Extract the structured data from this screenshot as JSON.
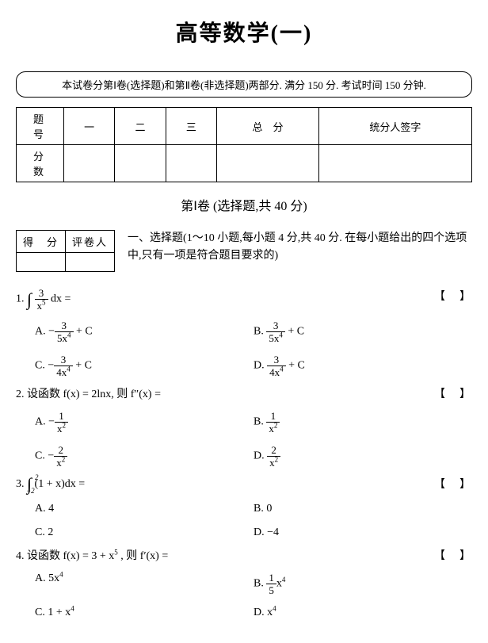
{
  "title": "高等数学(一)",
  "instruction": "本试卷分第Ⅰ卷(选择题)和第Ⅱ卷(非选择题)两部分. 满分 150 分. 考试时间 150 分钟.",
  "scoreTable": {
    "rowLabels": [
      "题　号",
      "分　数"
    ],
    "cols": [
      "一",
      "二",
      "三",
      "总　分",
      "统分人签字"
    ]
  },
  "part1Header": "第Ⅰ卷 (选择题,共 40 分)",
  "miniTable": {
    "h1": "得　分",
    "h2": "评卷人"
  },
  "sectionI": {
    "heading": "一、选择题(1～10 小题,每小题 4 分,共 40 分. 在每小题给出的四个选项",
    "heading2": "中,只有一项是符合题目要求的)"
  },
  "bracket": "【　】",
  "q1": {
    "num": "1.",
    "int": "∫",
    "frac_num": "3",
    "frac_den": "x",
    "exp": "5",
    "tail": "dx =",
    "A": {
      "label": "A. −",
      "num": "3",
      "den1": "5x",
      "exp": "4",
      "tail": " + C"
    },
    "B": {
      "label": "B. ",
      "num": "3",
      "den1": "5x",
      "exp": "4",
      "tail": " + C"
    },
    "C": {
      "label": "C. −",
      "num": "3",
      "den1": "4x",
      "exp": "4",
      "tail": " + C"
    },
    "D": {
      "label": "D. ",
      "num": "3",
      "den1": "4x",
      "exp": "4",
      "tail": " + C"
    }
  },
  "q2": {
    "stem": "2. 设函数 f(x) = 2lnx, 则 f″(x) =",
    "A": {
      "label": "A. −",
      "num": "1",
      "den": "x",
      "exp": "2"
    },
    "B": {
      "label": "B. ",
      "num": "1",
      "den": "x",
      "exp": "2"
    },
    "C": {
      "label": "C. −",
      "num": "2",
      "den": "x",
      "exp": "2"
    },
    "D": {
      "label": "D. ",
      "num": "2",
      "den": "x",
      "exp": "2"
    }
  },
  "q3": {
    "num": "3.",
    "int": "∫",
    "up": "2",
    "lo": "−2",
    "tail": "(1 + x)dx =",
    "A": "A. 4",
    "B": "B. 0",
    "C": "C. 2",
    "D": "D. −4"
  },
  "q4": {
    "stem_a": "4. 设函数 f(x) = 3 + x",
    "exp": "5",
    "stem_b": " , 则 f′(x) =",
    "A": {
      "label": "A. 5x",
      "exp": "4"
    },
    "B": {
      "label": "B. ",
      "num": "1",
      "den": "5",
      "tail": "x",
      "exp": "4"
    },
    "C": {
      "label": "C. 1 + x",
      "exp": "4"
    },
    "D": {
      "label": "D. x",
      "exp": "4"
    }
  }
}
